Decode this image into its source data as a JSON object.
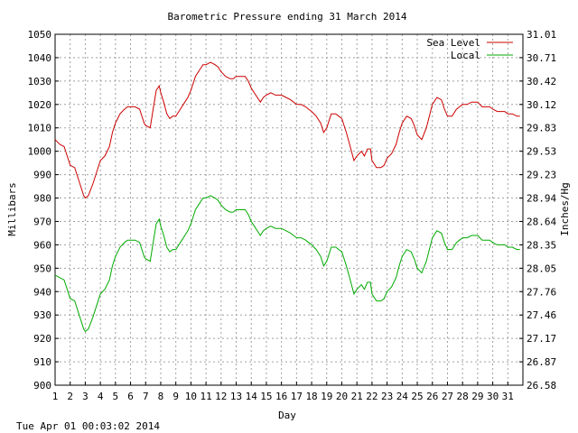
{
  "footer": {
    "timestamp": "Tue Apr 01 00:03:02 2014"
  },
  "chart_data": {
    "type": "line",
    "title": "Barometric Pressure ending 31 March 2014",
    "xlabel": "Day",
    "ylabel": "Millibars",
    "y2label": "Inches/Hg",
    "xlim": [
      1,
      32
    ],
    "ylim": [
      900,
      1050
    ],
    "grid": true,
    "legend_position": "top-right",
    "x_ticks": [
      "1",
      "2",
      "3",
      "4",
      "5",
      "6",
      "7",
      "8",
      "9",
      "10",
      "11",
      "12",
      "13",
      "14",
      "15",
      "16",
      "17",
      "18",
      "19",
      "20",
      "21",
      "22",
      "23",
      "24",
      "25",
      "26",
      "27",
      "28",
      "29",
      "30",
      "31"
    ],
    "y_ticks": [
      "900",
      "910",
      "920",
      "930",
      "940",
      "950",
      "960",
      "970",
      "980",
      "990",
      "1000",
      "1010",
      "1020",
      "1030",
      "1040",
      "1050"
    ],
    "y2_ticks": [
      "26.58",
      "26.87",
      "27.17",
      "27.46",
      "27.76",
      "28.05",
      "28.35",
      "28.64",
      "28.94",
      "29.23",
      "29.53",
      "29.83",
      "30.12",
      "30.42",
      "30.71",
      "31.01"
    ],
    "series": [
      {
        "name": "Sea Level",
        "color": "#cc0000",
        "x": [
          1.0,
          1.3,
          1.6,
          1.8,
          2.0,
          2.3,
          2.6,
          2.9,
          3.0,
          3.2,
          3.5,
          3.8,
          4.0,
          4.3,
          4.6,
          4.8,
          5.0,
          5.3,
          5.6,
          5.8,
          6.0,
          6.3,
          6.6,
          6.9,
          7.0,
          7.3,
          7.5,
          7.7,
          7.9,
          8.0,
          8.2,
          8.4,
          8.6,
          8.8,
          9.0,
          9.3,
          9.6,
          9.8,
          10.0,
          10.3,
          10.6,
          10.8,
          11.0,
          11.3,
          11.6,
          11.8,
          12.0,
          12.3,
          12.6,
          12.8,
          13.0,
          13.3,
          13.6,
          13.8,
          14.0,
          14.3,
          14.6,
          14.8,
          15.0,
          15.3,
          15.6,
          15.8,
          16.0,
          16.3,
          16.6,
          16.8,
          17.0,
          17.3,
          17.6,
          17.8,
          18.0,
          18.3,
          18.6,
          18.8,
          19.0,
          19.3,
          19.6,
          19.8,
          20.0,
          20.3,
          20.6,
          20.8,
          21.0,
          21.3,
          21.5,
          21.7,
          21.9,
          22.0,
          22.3,
          22.6,
          22.8,
          23.0,
          23.3,
          23.6,
          23.8,
          24.0,
          24.3,
          24.6,
          24.8,
          25.0,
          25.3,
          25.6,
          25.8,
          26.0,
          26.3,
          26.6,
          26.8,
          27.0,
          27.3,
          27.6,
          27.8,
          28.0,
          28.3,
          28.6,
          28.8,
          29.0,
          29.3,
          29.6,
          29.8,
          30.0,
          30.3,
          30.6,
          30.8,
          31.0,
          31.3,
          31.6,
          31.8
        ],
        "values": [
          1005,
          1003,
          1002,
          998,
          994,
          993,
          987,
          981,
          980,
          981,
          986,
          992,
          996,
          998,
          1002,
          1008,
          1012,
          1016,
          1018,
          1019,
          1019,
          1019,
          1018,
          1012,
          1011,
          1010,
          1018,
          1026,
          1028,
          1025,
          1021,
          1016,
          1014,
          1015,
          1015,
          1018,
          1021,
          1023,
          1026,
          1032,
          1035,
          1037,
          1037,
          1038,
          1037,
          1036,
          1034,
          1032,
          1031,
          1031,
          1032,
          1032,
          1032,
          1030,
          1027,
          1024,
          1021,
          1023,
          1024,
          1025,
          1024,
          1024,
          1024,
          1023,
          1022,
          1021,
          1020,
          1020,
          1019,
          1018,
          1017,
          1015,
          1012,
          1008,
          1010,
          1016,
          1016,
          1015,
          1014,
          1008,
          1001,
          996,
          998,
          1000,
          998,
          1001,
          1001,
          996,
          993,
          993,
          994,
          997,
          999,
          1003,
          1008,
          1012,
          1015,
          1014,
          1011,
          1007,
          1005,
          1010,
          1015,
          1020,
          1023,
          1022,
          1018,
          1015,
          1015,
          1018,
          1019,
          1020,
          1020,
          1021,
          1021,
          1021,
          1019,
          1019,
          1019,
          1018,
          1017,
          1017,
          1017,
          1016,
          1016,
          1015,
          1015
        ]
      },
      {
        "name": "Local",
        "color": "#00aa00",
        "x": [
          1.0,
          1.3,
          1.6,
          1.8,
          2.0,
          2.3,
          2.6,
          2.9,
          3.0,
          3.2,
          3.5,
          3.8,
          4.0,
          4.3,
          4.6,
          4.8,
          5.0,
          5.3,
          5.6,
          5.8,
          6.0,
          6.3,
          6.6,
          6.9,
          7.0,
          7.3,
          7.5,
          7.7,
          7.9,
          8.0,
          8.2,
          8.4,
          8.6,
          8.8,
          9.0,
          9.3,
          9.6,
          9.8,
          10.0,
          10.3,
          10.6,
          10.8,
          11.0,
          11.3,
          11.6,
          11.8,
          12.0,
          12.3,
          12.6,
          12.8,
          13.0,
          13.3,
          13.6,
          13.8,
          14.0,
          14.3,
          14.6,
          14.8,
          15.0,
          15.3,
          15.6,
          15.8,
          16.0,
          16.3,
          16.6,
          16.8,
          17.0,
          17.3,
          17.6,
          17.8,
          18.0,
          18.3,
          18.6,
          18.8,
          19.0,
          19.3,
          19.6,
          19.8,
          20.0,
          20.3,
          20.6,
          20.8,
          21.0,
          21.3,
          21.5,
          21.7,
          21.9,
          22.0,
          22.3,
          22.6,
          22.8,
          23.0,
          23.3,
          23.6,
          23.8,
          24.0,
          24.3,
          24.6,
          24.8,
          25.0,
          25.3,
          25.6,
          25.8,
          26.0,
          26.3,
          26.6,
          26.8,
          27.0,
          27.3,
          27.6,
          27.8,
          28.0,
          28.3,
          28.6,
          28.8,
          29.0,
          29.3,
          29.6,
          29.8,
          30.0,
          30.3,
          30.6,
          30.8,
          31.0,
          31.3,
          31.6,
          31.8
        ],
        "values": [
          947,
          946,
          945,
          941,
          937,
          936,
          930,
          924,
          923,
          924,
          929,
          935,
          939,
          941,
          945,
          951,
          955,
          959,
          961,
          962,
          962,
          962,
          961,
          955,
          954,
          953,
          961,
          969,
          971,
          968,
          964,
          959,
          957,
          958,
          958,
          961,
          964,
          966,
          969,
          975,
          978,
          980,
          980,
          981,
          980,
          979,
          977,
          975,
          974,
          974,
          975,
          975,
          975,
          973,
          970,
          967,
          964,
          966,
          967,
          968,
          967,
          967,
          967,
          966,
          965,
          964,
          963,
          963,
          962,
          961,
          960,
          958,
          955,
          951,
          953,
          959,
          959,
          958,
          957,
          951,
          944,
          939,
          941,
          943,
          941,
          944,
          944,
          939,
          936,
          936,
          937,
          940,
          942,
          946,
          951,
          955,
          958,
          957,
          954,
          950,
          948,
          953,
          958,
          963,
          966,
          965,
          961,
          958,
          958,
          961,
          962,
          963,
          963,
          964,
          964,
          964,
          962,
          962,
          962,
          961,
          960,
          960,
          960,
          959,
          959,
          958,
          958
        ]
      }
    ]
  }
}
